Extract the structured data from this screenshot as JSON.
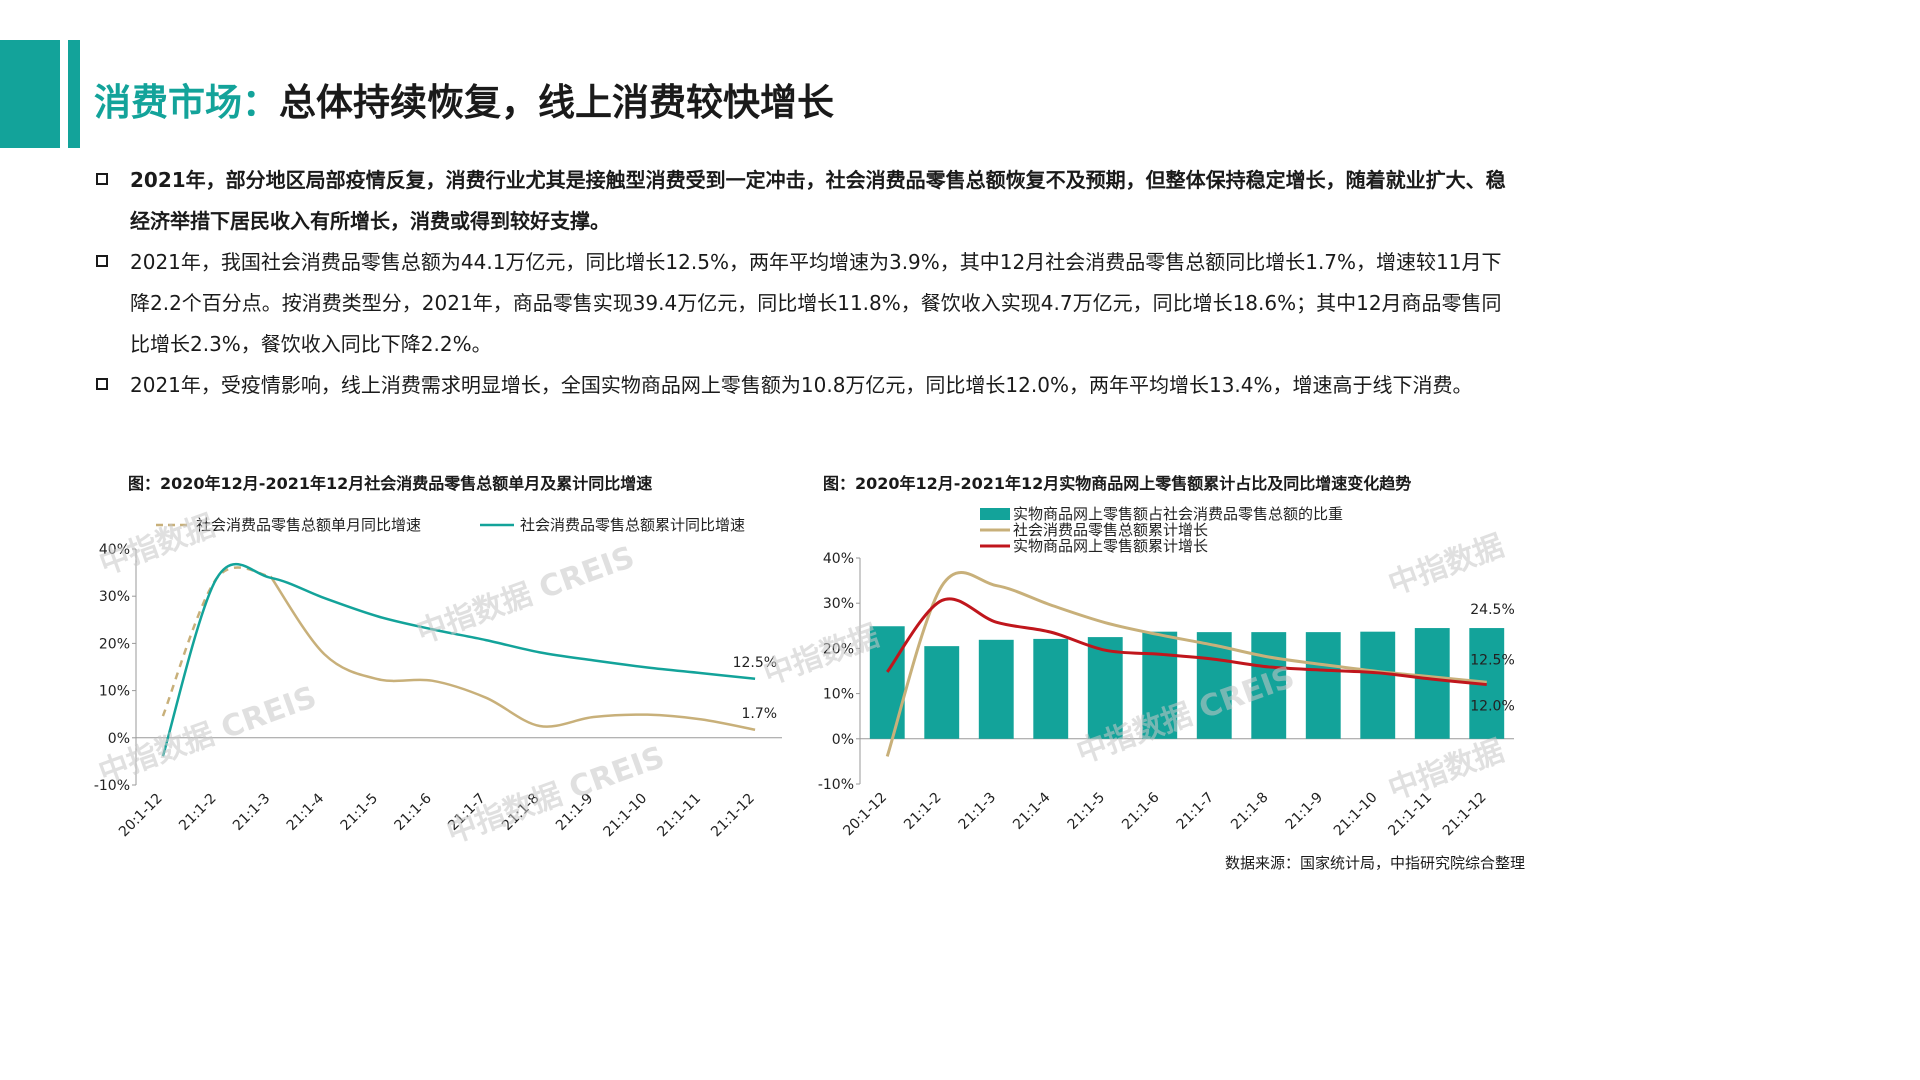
{
  "page": {
    "title_accent": "消费市场：",
    "title_rest": "总体持续恢复，线上消费较快增长",
    "accent_color": "#13a39a",
    "bullets": [
      "2021年，部分地区局部疫情反复，消费行业尤其是接触型消费受到一定冲击，社会消费品零售总额恢复不及预期，但整体保持稳定增长，随着就业扩大、稳经济举措下居民收入有所增长，消费或得到较好支撑。",
      "2021年，我国社会消费品零售总额为44.1万亿元，同比增长12.5%，两年平均增速为3.9%，其中12月社会消费品零售总额同比增长1.7%，增速较11月下降2.2个百分点。按消费类型分，2021年，商品零售实现39.4万亿元，同比增长11.8%，餐饮收入实现4.7万亿元，同比增长18.6%；其中12月商品零售同比增长2.3%，餐饮收入同比下降2.2%。",
      "2021年，受疫情影响，线上消费需求明显增长，全国实物商品网上零售额为10.8万亿元，同比增长12.0%，两年平均增长13.4%，增速高于线下消费。"
    ],
    "source": "数据来源：国家统计局，中指研究院综合整理",
    "watermark_cn": "中指数据",
    "watermark_en": "CREIS"
  },
  "chart_data": [
    {
      "type": "line",
      "title": "图：2020年12月-2021年12月社会消费品零售总额单月及累计同比增速",
      "categories": [
        "20:1-12",
        "21:1-2",
        "21:1-3",
        "21:1-4",
        "21:1-5",
        "21:1-6",
        "21:1-7",
        "21:1-8",
        "21:1-9",
        "21:1-10",
        "21:1-11",
        "21:1-12"
      ],
      "series": [
        {
          "name": "社会消费品零售总额单月同比增速",
          "color": "#c8b07a",
          "style": "dashed-then-solid",
          "values": [
            4.6,
            33.8,
            34.2,
            17.7,
            12.4,
            12.1,
            8.5,
            2.5,
            4.4,
            4.9,
            3.9,
            1.7
          ]
        },
        {
          "name": "社会消费品零售总额累计同比增速",
          "color": "#13a39a",
          "style": "solid",
          "values": [
            -3.9,
            33.8,
            33.9,
            29.6,
            25.7,
            23.0,
            20.7,
            18.1,
            16.4,
            14.9,
            13.7,
            12.5
          ]
        }
      ],
      "annotations": [
        {
          "series": 1,
          "index": 11,
          "text": "12.5%"
        },
        {
          "series": 0,
          "index": 11,
          "text": "1.7%"
        }
      ],
      "ylim": [
        -10,
        40
      ],
      "yticks": [
        "-10%",
        "0%",
        "10%",
        "20%",
        "30%",
        "40%"
      ],
      "legend": "top"
    },
    {
      "type": "bar",
      "title": "图：2020年12月-2021年12月实物商品网上零售额累计占比及同比增速变化趋势",
      "categories": [
        "20:1-12",
        "21:1-2",
        "21:1-3",
        "21:1-4",
        "21:1-5",
        "21:1-6",
        "21:1-7",
        "21:1-8",
        "21:1-9",
        "21:1-10",
        "21:1-11",
        "21:1-12"
      ],
      "series": [
        {
          "name": "实物商品网上零售额占社会消费品零售总额的比重",
          "type": "bar",
          "color": "#13a39a",
          "values": [
            24.9,
            20.5,
            21.9,
            22.1,
            22.5,
            23.7,
            23.6,
            23.6,
            23.6,
            23.7,
            24.5,
            24.5
          ]
        },
        {
          "name": "社会消费品零售总额累计增长",
          "type": "line",
          "color": "#c8b07a",
          "values": [
            -3.9,
            33.8,
            33.9,
            29.6,
            25.7,
            23.0,
            20.7,
            18.1,
            16.4,
            14.9,
            13.7,
            12.5
          ]
        },
        {
          "name": "实物商品网上零售额累计增长",
          "type": "line",
          "color": "#c0161c",
          "values": [
            14.8,
            30.6,
            25.8,
            23.6,
            19.6,
            18.7,
            17.6,
            15.9,
            15.2,
            14.6,
            13.2,
            12.0
          ]
        }
      ],
      "annotations": [
        {
          "series": 0,
          "index": 11,
          "text": "24.5%"
        },
        {
          "series": 1,
          "index": 11,
          "text": "12.5%"
        },
        {
          "series": 2,
          "index": 11,
          "text": "12.0%"
        }
      ],
      "ylim": [
        -10,
        40
      ],
      "yticks": [
        "-10%",
        "0%",
        "10%",
        "20%",
        "30%",
        "40%"
      ],
      "legend": "top-left"
    }
  ]
}
